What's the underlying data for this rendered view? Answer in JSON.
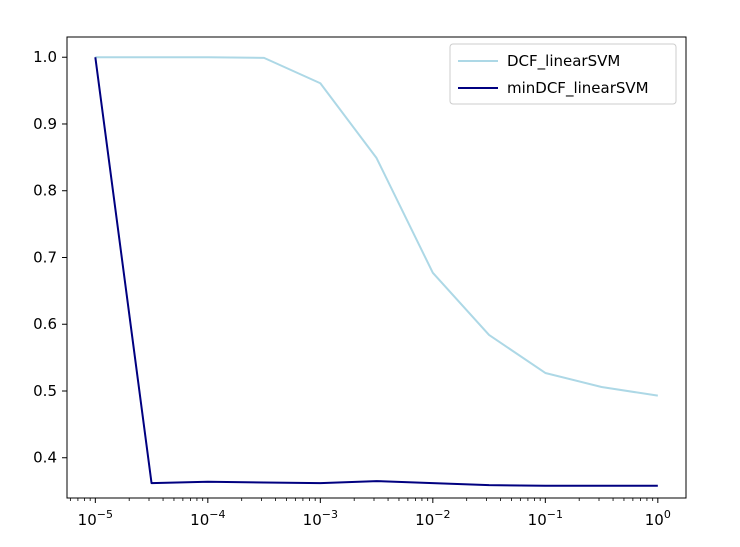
{
  "chart_data": {
    "type": "line",
    "xscale": "log",
    "xlim": [
      5.6e-06,
      1.78
    ],
    "ylim": [
      0.3397,
      1.0303
    ],
    "grid": false,
    "legend_position": "top-right",
    "x_tick_labels": [
      {
        "base": "10",
        "exp": "−5",
        "value": 1e-05
      },
      {
        "base": "10",
        "exp": "−4",
        "value": 0.0001
      },
      {
        "base": "10",
        "exp": "−3",
        "value": 0.001
      },
      {
        "base": "10",
        "exp": "−2",
        "value": 0.01
      },
      {
        "base": "10",
        "exp": "−1",
        "value": 0.1
      },
      {
        "base": "10",
        "exp": "0",
        "value": 1
      }
    ],
    "y_ticks": [
      0.4,
      0.5,
      0.6,
      0.7,
      0.8,
      0.9,
      1.0
    ],
    "y_tick_labels": [
      "0.4",
      "0.5",
      "0.6",
      "0.7",
      "0.8",
      "0.9",
      "1.0"
    ],
    "x": [
      1e-05,
      3.16e-05,
      0.0001,
      0.000316,
      0.001,
      0.00316,
      0.01,
      0.0316,
      0.1,
      0.316,
      1
    ],
    "series": [
      {
        "name": "DCF_linearSVM",
        "color": "#add8e6",
        "values": [
          1.0,
          1.0,
          1.0,
          0.999,
          0.961,
          0.849,
          0.677,
          0.584,
          0.527,
          0.506,
          0.493
        ]
      },
      {
        "name": "minDCF_linearSVM",
        "color": "#000080",
        "values": [
          1.0,
          0.362,
          0.364,
          0.363,
          0.362,
          0.365,
          0.362,
          0.359,
          0.358,
          0.358,
          0.358
        ]
      }
    ]
  }
}
